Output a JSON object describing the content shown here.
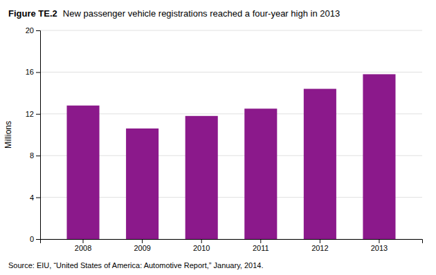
{
  "chart_data": {
    "type": "bar",
    "title": "Figure TE.2",
    "subtitle": "New passenger vehicle registrations reached a four-year high in 2013",
    "annotations": [
      "Source: EIU, “United States of America: Automotive Report,” January, 2014."
    ],
    "ylabel": "Millions",
    "categories": [
      "2008",
      "2009",
      "2010",
      "2011",
      "2012",
      "2013"
    ],
    "values": [
      12.8,
      10.6,
      11.8,
      12.5,
      14.4,
      15.8
    ],
    "color": "#8B198B",
    "ylim": [
      0,
      20
    ],
    "yticks": [
      0,
      4,
      8,
      12,
      16,
      20
    ],
    "grid": true
  }
}
